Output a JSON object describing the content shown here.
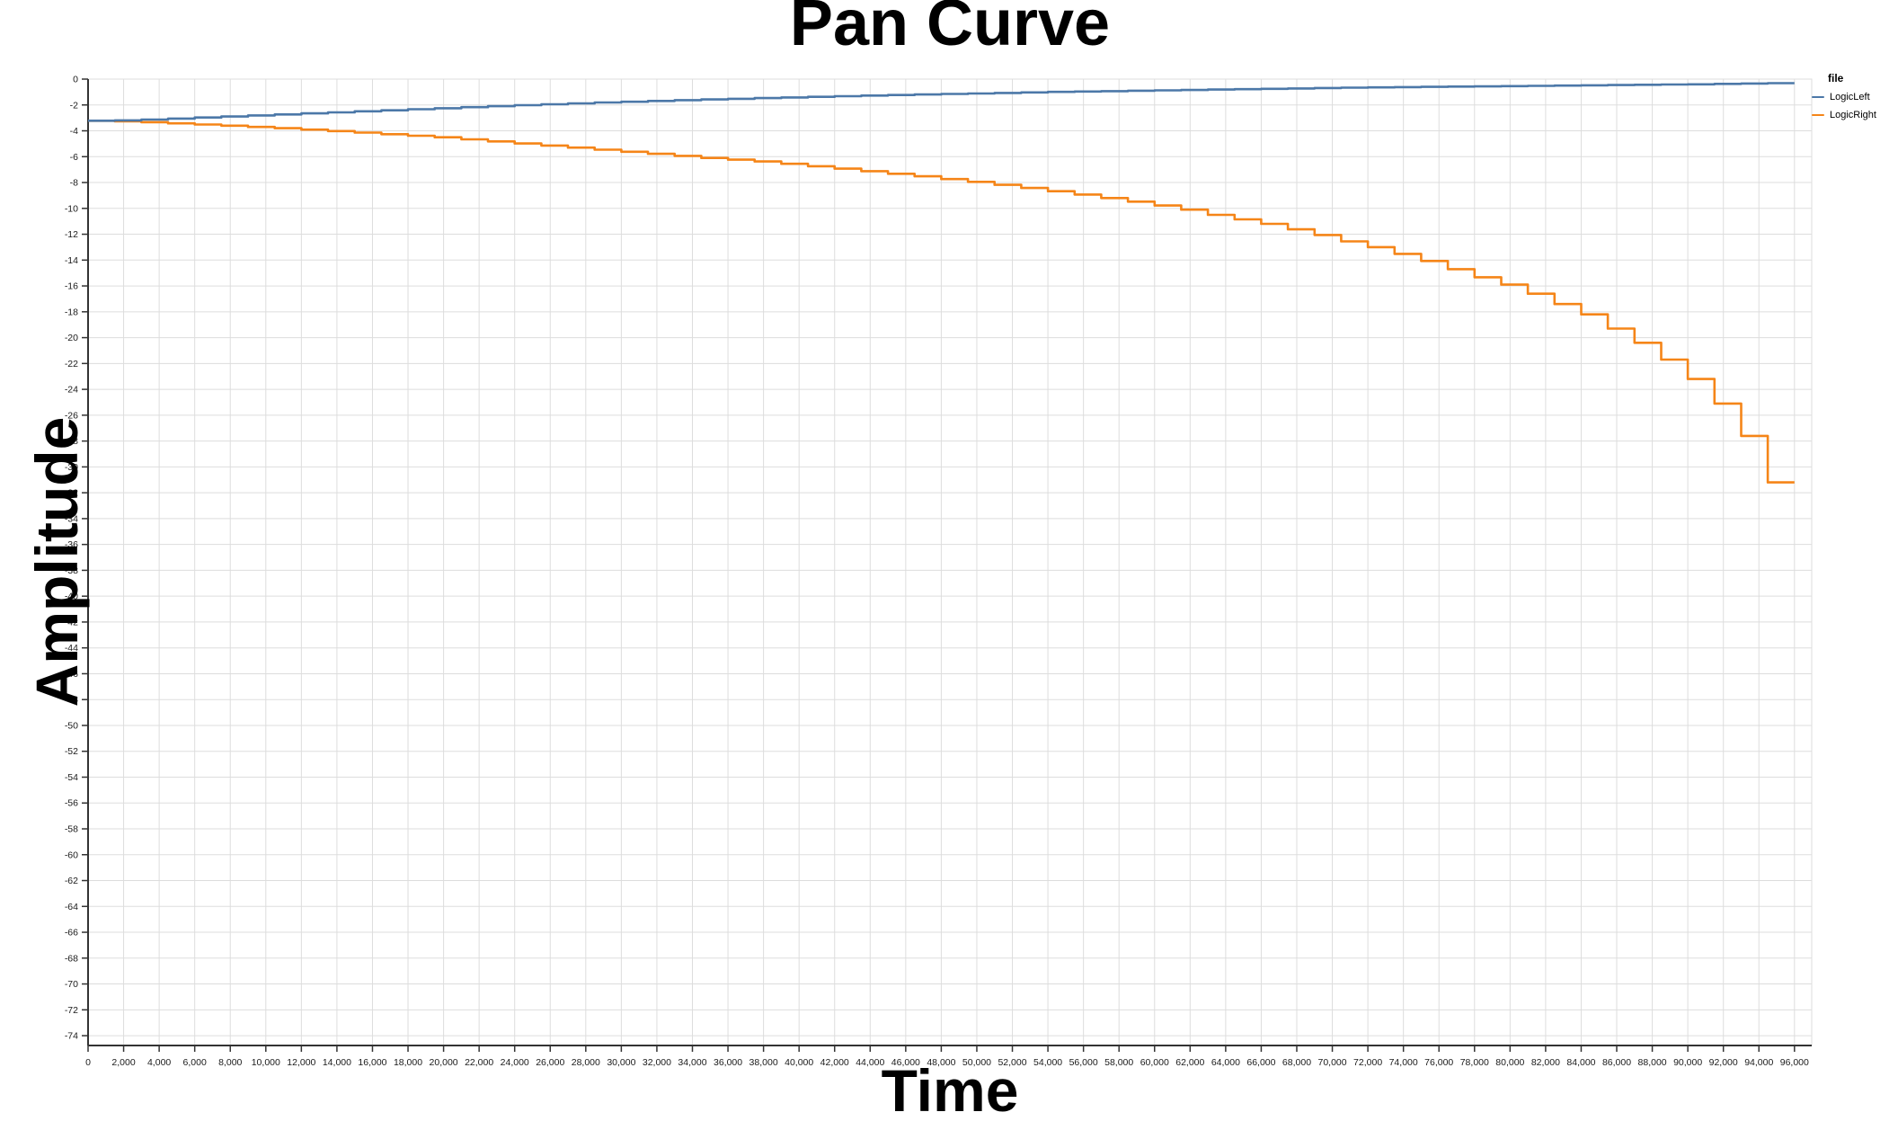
{
  "chart_data": {
    "type": "line",
    "interpolation": "step-after",
    "title": "Pan Curve",
    "xlabel": "Time",
    "ylabel": "Amplitude",
    "legend_title": "file",
    "legend_position": "top-right-outside",
    "grid": true,
    "x_domain": [
      0,
      96970
    ],
    "y_domain": [
      -74.76,
      0
    ],
    "x_end": 96000,
    "step_width": 1500,
    "x_ticks": [
      0,
      2000,
      4000,
      6000,
      8000,
      10000,
      12000,
      14000,
      16000,
      18000,
      20000,
      22000,
      24000,
      26000,
      28000,
      30000,
      32000,
      34000,
      36000,
      38000,
      40000,
      42000,
      44000,
      46000,
      48000,
      50000,
      52000,
      54000,
      56000,
      58000,
      60000,
      62000,
      64000,
      66000,
      68000,
      70000,
      72000,
      74000,
      76000,
      78000,
      80000,
      82000,
      84000,
      86000,
      88000,
      90000,
      92000,
      94000,
      96000
    ],
    "y_ticks": [
      0,
      -2,
      -4,
      -6,
      -8,
      -10,
      -12,
      -14,
      -16,
      -18,
      -20,
      -22,
      -24,
      -26,
      -28,
      -30,
      -32,
      -34,
      -36,
      -38,
      -40,
      -42,
      -44,
      -46,
      -48,
      -50,
      -52,
      -54,
      -56,
      -58,
      -60,
      -62,
      -64,
      -66,
      -68,
      -70,
      -72,
      -74
    ],
    "series": [
      {
        "name": "LogicRight",
        "color": "#f58518",
        "values": [
          -3.22,
          -3.26,
          -3.33,
          -3.42,
          -3.51,
          -3.6,
          -3.7,
          -3.8,
          -3.91,
          -4.02,
          -4.14,
          -4.26,
          -4.38,
          -4.5,
          -4.66,
          -4.82,
          -4.98,
          -5.14,
          -5.3,
          -5.46,
          -5.62,
          -5.78,
          -5.94,
          -6.1,
          -6.23,
          -6.37,
          -6.55,
          -6.74,
          -6.93,
          -7.12,
          -7.32,
          -7.52,
          -7.73,
          -7.95,
          -8.18,
          -8.42,
          -8.67,
          -8.93,
          -9.2,
          -9.48,
          -9.78,
          -10.1,
          -10.5,
          -10.85,
          -11.2,
          -11.62,
          -12.06,
          -12.55,
          -13.0,
          -13.52,
          -14.07,
          -14.7,
          -15.33,
          -15.9,
          -16.6,
          -17.4,
          -18.2,
          -19.3,
          -20.4,
          -21.7,
          -23.2,
          -25.1,
          -27.6,
          -31.2
        ]
      },
      {
        "name": "LogicLeft",
        "color": "#4c78a8",
        "values": [
          -3.22,
          -3.19,
          -3.13,
          -3.05,
          -2.97,
          -2.89,
          -2.81,
          -2.73,
          -2.65,
          -2.57,
          -2.49,
          -2.41,
          -2.33,
          -2.25,
          -2.17,
          -2.09,
          -2.02,
          -1.95,
          -1.88,
          -1.81,
          -1.75,
          -1.69,
          -1.63,
          -1.57,
          -1.52,
          -1.47,
          -1.42,
          -1.37,
          -1.32,
          -1.27,
          -1.23,
          -1.19,
          -1.15,
          -1.11,
          -1.07,
          -1.03,
          -0.99,
          -0.96,
          -0.93,
          -0.9,
          -0.87,
          -0.84,
          -0.81,
          -0.78,
          -0.75,
          -0.72,
          -0.69,
          -0.66,
          -0.64,
          -0.62,
          -0.6,
          -0.58,
          -0.56,
          -0.54,
          -0.52,
          -0.5,
          -0.48,
          -0.46,
          -0.44,
          -0.42,
          -0.4,
          -0.37,
          -0.34,
          -0.31
        ]
      }
    ],
    "colors": {
      "gridline": "#dddddd",
      "axis": "#333333",
      "tick_label": "#1a1a1a",
      "plot_border": "#dddddd"
    }
  },
  "legend": {
    "title": "file",
    "items": [
      {
        "label": "LogicLeft",
        "color": "#4c78a8"
      },
      {
        "label": "LogicRight",
        "color": "#f58518"
      }
    ]
  },
  "titles": {
    "main": "Pan Curve",
    "x_axis": "Time",
    "y_axis": "Amplitude"
  }
}
